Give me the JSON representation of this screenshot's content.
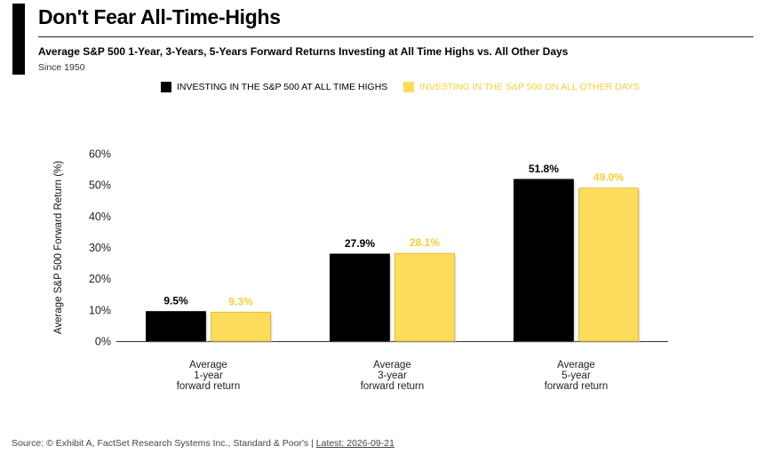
{
  "header": {
    "title": "Don't Fear All-Time-Highs",
    "subtitle": "Average S&P 500 1-Year, 3-Years, 5-Years Forward Returns Investing at All Time Highs vs. All Other Days",
    "since": "Since 1950"
  },
  "colors": {
    "ath": "#000000",
    "other": "#FDDC5C",
    "other_label": "#F5CF3B"
  },
  "footer": {
    "source": "Source: © Exhibit A, FactSet Research Systems Inc., Standard & Poor's | ",
    "latest": "Latest: 2026-09-21"
  },
  "chart_data": {
    "type": "bar",
    "categories": [
      [
        "Average",
        "1-year",
        "forward return"
      ],
      [
        "Average",
        "3-year",
        "forward return"
      ],
      [
        "Average",
        "5-year",
        "forward return"
      ]
    ],
    "series": [
      {
        "name": "INVESTING IN THE S&P 500 AT ALL TIME HIGHS",
        "values": [
          9.5,
          27.9,
          51.8
        ],
        "labels": [
          "9.5%",
          "27.9%",
          "51.8%"
        ]
      },
      {
        "name": "INVESTING IN THE S&P 500 ON ALL OTHER DAYS",
        "values": [
          9.3,
          28.1,
          49.0
        ],
        "labels": [
          "9.3%",
          "28.1%",
          "49.0%"
        ]
      }
    ],
    "ylabel": "Average S&P 500 Forward Return (%)",
    "ylim": [
      0,
      60
    ],
    "yticks": [
      0,
      10,
      20,
      30,
      40,
      50,
      60
    ],
    "ytick_labels": [
      "0%",
      "10%",
      "20%",
      "30%",
      "40%",
      "50%",
      "60%"
    ],
    "grid": false,
    "legend": "top-center"
  }
}
